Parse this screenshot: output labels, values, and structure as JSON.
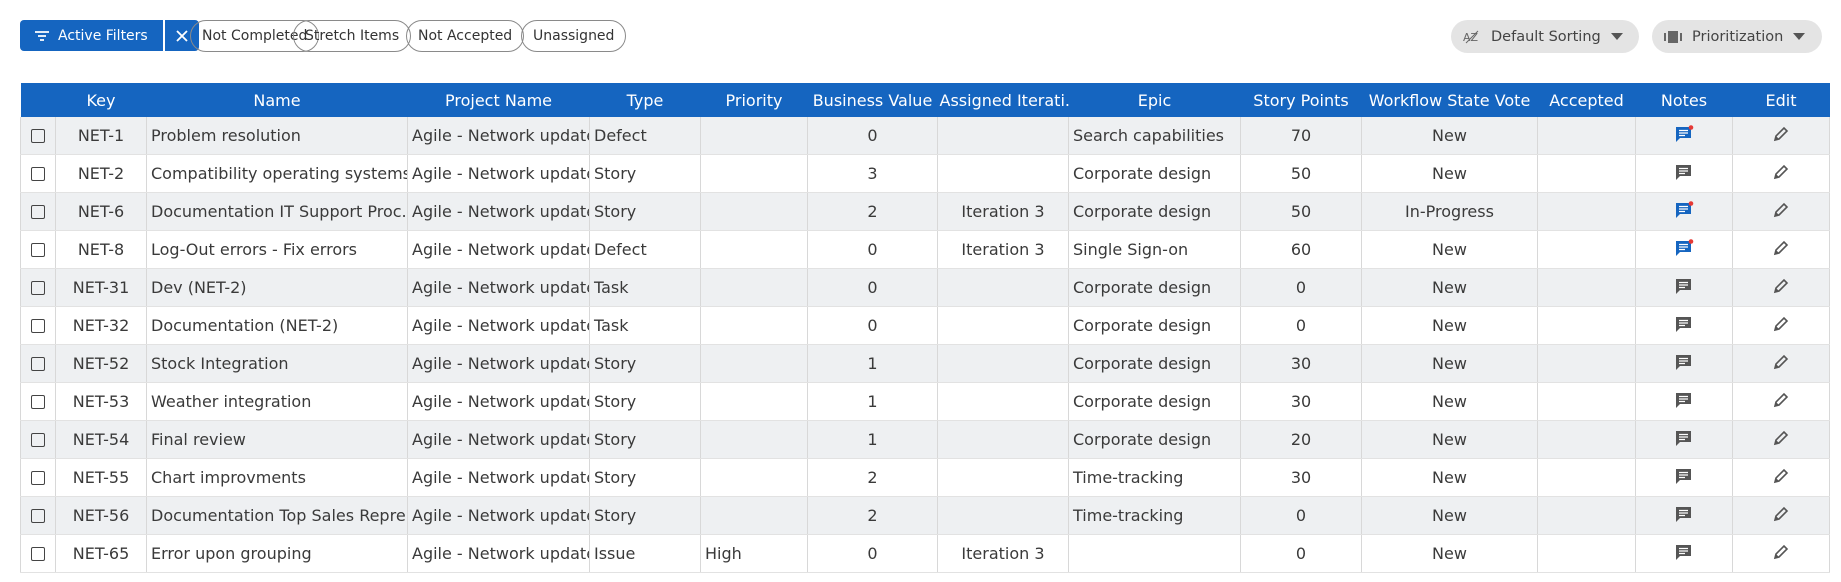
{
  "toolbar": {
    "active_filters": "Active Filters",
    "chips": [
      "Not Completed",
      "Stretch Items",
      "Not Accepted",
      "Unassigned"
    ],
    "sorting": "Default Sorting",
    "view": "Prioritization"
  },
  "table": {
    "columns": [
      "Key",
      "Name",
      "Project Name",
      "Type",
      "Priority",
      "Business Value",
      "Assigned Iterati...",
      "Epic",
      "Story Points",
      "Workflow State Vote",
      "Accepted",
      "Notes",
      "Edit"
    ],
    "rows": [
      [
        "NET-1",
        "Problem resolution",
        "Agile - Network update",
        "Defect",
        null,
        "0",
        null,
        "Search capabilities",
        "70",
        "New",
        null
      ],
      [
        "NET-2",
        "Compatibility operating systems",
        "Agile - Network update",
        "Story",
        null,
        "3",
        null,
        "Corporate design",
        "50",
        "New",
        null
      ],
      [
        "NET-6",
        "Documentation IT Support Proc...",
        "Agile - Network update",
        "Story",
        null,
        "2",
        "Iteration 3",
        "Corporate design",
        "50",
        "In-Progress",
        null
      ],
      [
        "NET-8",
        "Log-Out errors - Fix errors",
        "Agile - Network update",
        "Defect",
        null,
        "0",
        "Iteration 3",
        "Single Sign-on",
        "60",
        "New",
        null
      ],
      [
        "NET-31",
        "Dev (NET-2)",
        "Agile - Network update",
        "Task",
        null,
        "0",
        null,
        "Corporate design",
        "0",
        "New",
        null
      ],
      [
        "NET-32",
        "Documentation (NET-2)",
        "Agile - Network update",
        "Task",
        null,
        "0",
        null,
        "Corporate design",
        "0",
        "New",
        null
      ],
      [
        "NET-52",
        "Stock Integration",
        "Agile - Network update",
        "Story",
        null,
        "1",
        null,
        "Corporate design",
        "30",
        "New",
        null
      ],
      [
        "NET-53",
        "Weather integration",
        "Agile - Network update",
        "Story",
        null,
        "1",
        null,
        "Corporate design",
        "30",
        "New",
        null
      ],
      [
        "NET-54",
        "Final review",
        "Agile - Network update",
        "Story",
        null,
        "1",
        null,
        "Corporate design",
        "20",
        "New",
        null
      ],
      [
        "NET-55",
        "Chart improvments",
        "Agile - Network update",
        "Story",
        null,
        "2",
        null,
        "Time-tracking",
        "30",
        "New",
        null
      ],
      [
        "NET-56",
        "Documentation Top Sales Repre...",
        "Agile - Network update",
        "Story",
        null,
        "2",
        null,
        "Time-tracking",
        "0",
        "New",
        null
      ],
      [
        "NET-65",
        "Error upon grouping",
        "Agile - Network update",
        "Issue",
        "High",
        "0",
        "Iteration 3",
        null,
        "0",
        "New",
        null
      ]
    ],
    "notes_unread": [
      true,
      false,
      true,
      true,
      false,
      false,
      false,
      false,
      false,
      false,
      false,
      false
    ]
  }
}
